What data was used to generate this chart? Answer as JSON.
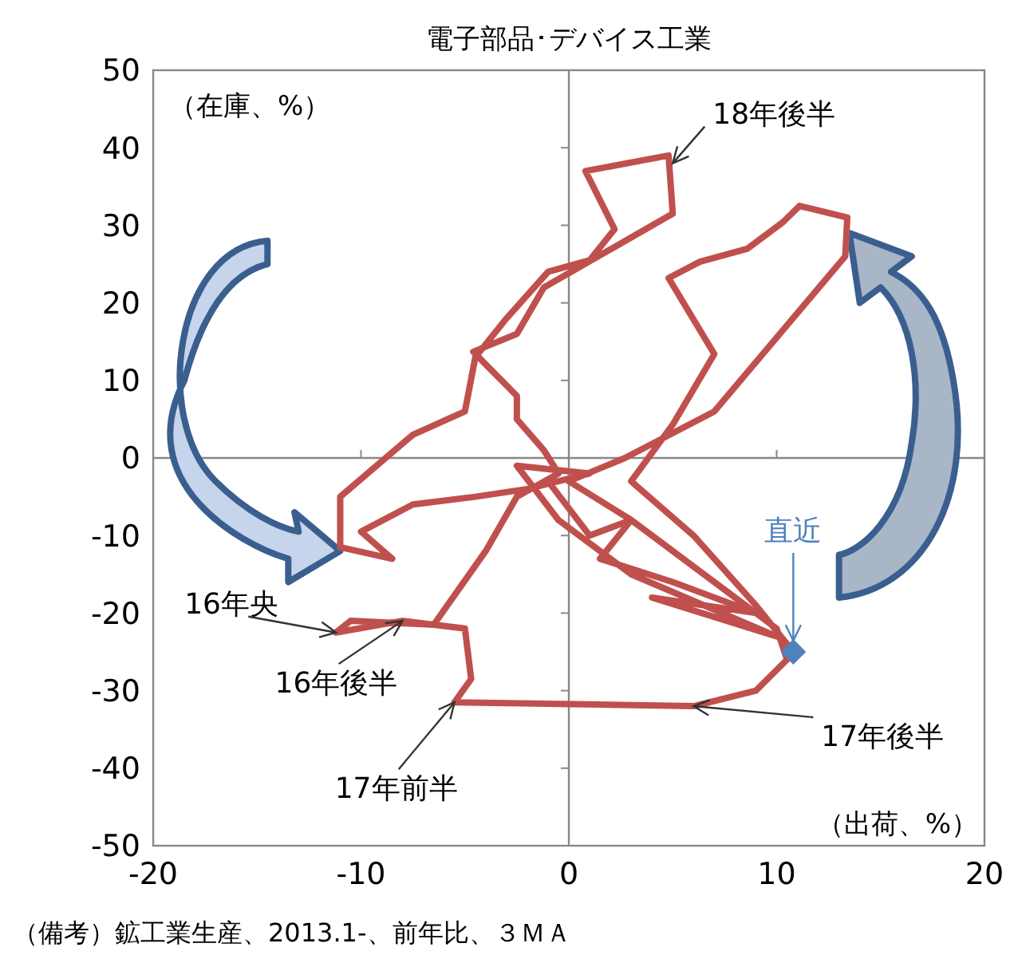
{
  "chart_data": {
    "type": "line",
    "title": "電子部品･デバイス工業",
    "xlabel": "（出荷、%）",
    "ylabel": "（在庫、%）",
    "xlim": [
      -20,
      20
    ],
    "ylim": [
      -50,
      50
    ],
    "xticks": [
      -20,
      -10,
      0,
      10,
      20
    ],
    "yticks": [
      -50,
      -40,
      -30,
      -20,
      -10,
      0,
      10,
      20,
      30,
      40,
      50
    ],
    "series": [
      {
        "color": "#c0504d",
        "x": [
          -1,
          1,
          3,
          1.5,
          5,
          9,
          4,
          10,
          3,
          -0.5,
          -2.5,
          1,
          -2,
          -4.5,
          -7.5,
          -10,
          -8.5,
          -11,
          -11,
          -7.5,
          -5,
          -4.5,
          -3,
          -1,
          1,
          2.2,
          0.8,
          4.8,
          5,
          -1.2,
          -2.5,
          -4.6,
          -2.5,
          -2.5,
          -1.2,
          -0.5,
          -2.5,
          -4,
          -6.5,
          -8,
          -11.2,
          -10.5,
          -6.5,
          -5,
          -4.7,
          -5.5,
          6,
          9,
          10.5,
          10,
          8,
          3,
          0,
          2.7,
          7,
          13.3,
          13.4,
          11.1,
          10.3,
          8.6,
          6.3,
          4.8,
          7,
          5,
          3,
          6,
          9,
          10.5,
          10.8
        ],
        "values": [
          -3,
          -10,
          -8,
          -13,
          -16,
          -20,
          -18,
          -23,
          -15,
          -8,
          -1,
          -2,
          -4,
          -5,
          -6,
          -9.5,
          -13,
          -11.5,
          -5,
          3,
          6,
          13,
          18,
          24,
          25.5,
          29.5,
          37,
          39,
          31.5,
          22,
          16,
          13.7,
          8,
          5,
          1,
          -2,
          -5,
          -12,
          -21.5,
          -21,
          -22.5,
          -21,
          -21.5,
          -22,
          -28.5,
          -31.5,
          -32,
          -30,
          -26,
          -22,
          -18,
          -8,
          -3,
          0,
          6,
          26,
          31,
          32.5,
          30.4,
          27,
          25.3,
          23.2,
          13.4,
          4.3,
          -3,
          -10,
          -19,
          -24,
          -25
        ]
      },
      {
        "type": "scatter",
        "color": "#4f81bd",
        "marker": "diamond",
        "x": [
          10.8
        ],
        "values": [
          -25
        ]
      }
    ],
    "annotations": [
      {
        "text": "18年後半",
        "x": 5,
        "y": 38
      },
      {
        "text": "直近",
        "x": 10.8,
        "y": -25
      },
      {
        "text": "16年央",
        "x": -11.2,
        "y": -22.5
      },
      {
        "text": "16年後半",
        "x": -8,
        "y": -21
      },
      {
        "text": "17年前半",
        "x": -5.5,
        "y": -31.5
      },
      {
        "text": "17年後半",
        "x": 6,
        "y": -32
      },
      "（備考）鉱工業生産、2013.1-、前年比、３ＭＡ"
    ]
  }
}
